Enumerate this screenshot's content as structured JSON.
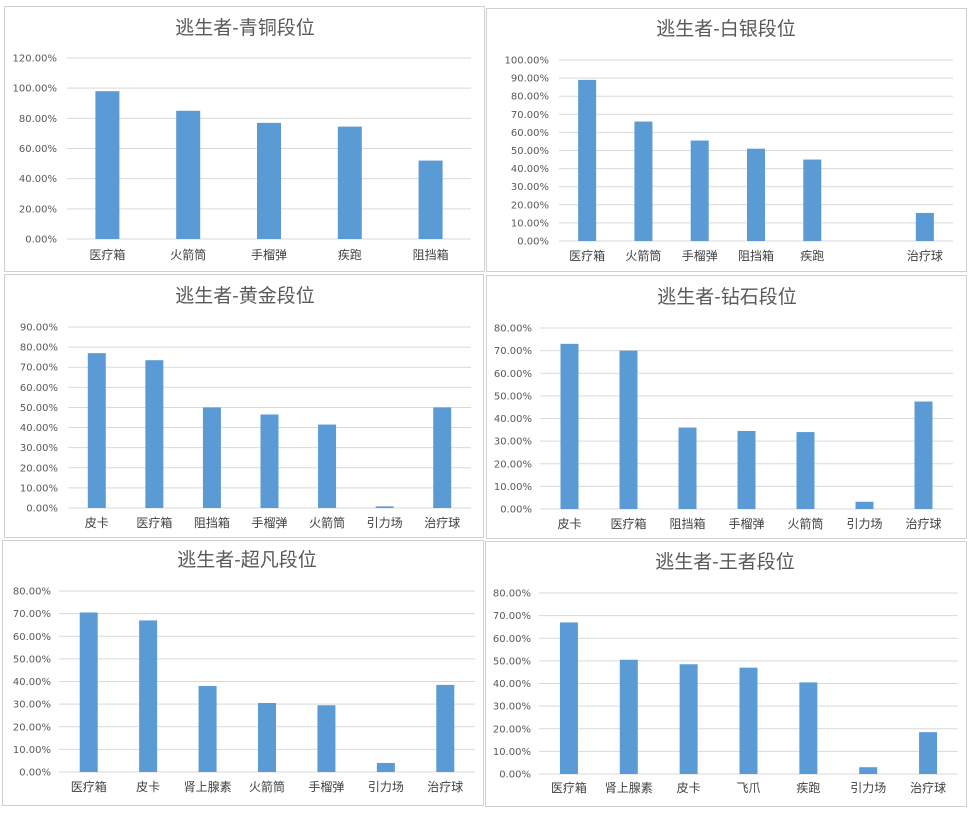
{
  "colors": {
    "bar": "#5b9bd5",
    "grid": "#d9d9d9",
    "text": "#595959"
  },
  "chart_data": [
    {
      "type": "bar",
      "title": "逃生者-青铜段位",
      "categories": [
        "医疗箱",
        "火箭筒",
        "手榴弹",
        "疾跑",
        "阻挡箱"
      ],
      "values": [
        98,
        85,
        77,
        74.5,
        52
      ],
      "ylim": [
        0,
        120
      ],
      "yticks": [
        "0.00%",
        "20.00%",
        "40.00%",
        "60.00%",
        "80.00%",
        "100.00%",
        "120.00%"
      ],
      "xlabel": "",
      "ylabel": ""
    },
    {
      "type": "bar",
      "title": "逃生者-白银段位",
      "categories": [
        "医疗箱",
        "火箭筒",
        "手榴弹",
        "阻挡箱",
        "疾跑",
        "",
        "治疗球"
      ],
      "values": [
        89,
        66,
        55.5,
        51,
        45,
        0,
        15.5
      ],
      "ylim": [
        0,
        100
      ],
      "yticks": [
        "0.00%",
        "10.00%",
        "20.00%",
        "30.00%",
        "40.00%",
        "50.00%",
        "60.00%",
        "70.00%",
        "80.00%",
        "90.00%",
        "100.00%"
      ],
      "xlabel": "",
      "ylabel": ""
    },
    {
      "type": "bar",
      "title": "逃生者-黄金段位",
      "categories": [
        "皮卡",
        "医疗箱",
        "阻挡箱",
        "手榴弹",
        "火箭筒",
        "引力场",
        "治疗球"
      ],
      "values": [
        77,
        73.5,
        50,
        46.5,
        41.5,
        0.8,
        50
      ],
      "ylim": [
        0,
        90
      ],
      "yticks": [
        "0.00%",
        "10.00%",
        "20.00%",
        "30.00%",
        "40.00%",
        "50.00%",
        "60.00%",
        "70.00%",
        "80.00%",
        "90.00%"
      ],
      "xlabel": "",
      "ylabel": ""
    },
    {
      "type": "bar",
      "title": "逃生者-钻石段位",
      "categories": [
        "皮卡",
        "医疗箱",
        "阻挡箱",
        "手榴弹",
        "火箭筒",
        "引力场",
        "治疗球"
      ],
      "values": [
        73,
        70,
        36,
        34.5,
        34,
        3.2,
        47.5
      ],
      "ylim": [
        0,
        80
      ],
      "yticks": [
        "0.00%",
        "10.00%",
        "20.00%",
        "30.00%",
        "40.00%",
        "50.00%",
        "60.00%",
        "70.00%",
        "80.00%"
      ],
      "xlabel": "",
      "ylabel": ""
    },
    {
      "type": "bar",
      "title": "逃生者-超凡段位",
      "categories": [
        "医疗箱",
        "皮卡",
        "肾上腺素",
        "火箭筒",
        "手榴弹",
        "引力场",
        "治疗球"
      ],
      "values": [
        70.5,
        67,
        38,
        30.5,
        29.5,
        4,
        38.5
      ],
      "ylim": [
        0,
        80
      ],
      "yticks": [
        "0.00%",
        "10.00%",
        "20.00%",
        "30.00%",
        "40.00%",
        "50.00%",
        "60.00%",
        "70.00%",
        "80.00%"
      ],
      "xlabel": "",
      "ylabel": ""
    },
    {
      "type": "bar",
      "title": "逃生者-王者段位",
      "categories": [
        "医疗箱",
        "肾上腺素",
        "皮卡",
        "飞爪",
        "疾跑",
        "引力场",
        "治疗球"
      ],
      "values": [
        67,
        50.5,
        48.5,
        47,
        40.5,
        3,
        18.5
      ],
      "ylim": [
        0,
        80
      ],
      "yticks": [
        "0.00%",
        "10.00%",
        "20.00%",
        "30.00%",
        "40.00%",
        "50.00%",
        "60.00%",
        "70.00%",
        "80.00%"
      ],
      "xlabel": "",
      "ylabel": ""
    }
  ]
}
